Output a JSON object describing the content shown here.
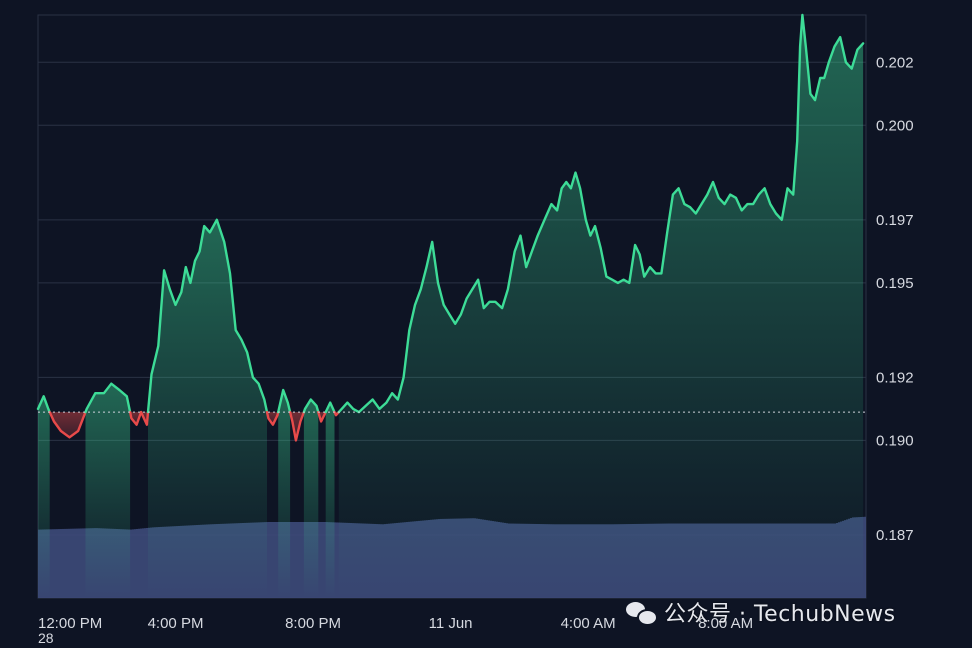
{
  "chart_data": {
    "type": "line",
    "baseline": 0.1909,
    "ylim": [
      0.185,
      0.2035
    ],
    "y_ticks": [
      {
        "value": 0.202,
        "label": "0.202"
      },
      {
        "value": 0.2,
        "label": "0.200"
      },
      {
        "value": 0.197,
        "label": "0.197"
      },
      {
        "value": 0.195,
        "label": "0.195"
      },
      {
        "value": 0.192,
        "label": "0.192"
      },
      {
        "value": 0.19,
        "label": "0.190"
      },
      {
        "value": 0.187,
        "label": "0.187"
      }
    ],
    "x_ticks": [
      {
        "value": 0,
        "label": "12:00 PM"
      },
      {
        "value": 240,
        "label": "4:00 PM"
      },
      {
        "value": 480,
        "label": "8:00 PM"
      },
      {
        "value": 720,
        "label": "11 Jun"
      },
      {
        "value": 960,
        "label": "4:00 AM"
      },
      {
        "value": 1200,
        "label": "8:00 AM"
      }
    ],
    "x_range_minutes": [
      0,
      1445
    ],
    "colors": {
      "up": "#3ddc97",
      "down": "#e84a4a",
      "volume": "#3d4a7a",
      "grid": "#2a3245",
      "baseline": "#cfd3dc"
    },
    "series": [
      {
        "values": [
          [
            0,
            0.191
          ],
          [
            10,
            0.1914
          ],
          [
            18,
            0.191
          ],
          [
            28,
            0.1906
          ],
          [
            40,
            0.1903
          ],
          [
            55,
            0.1901
          ],
          [
            70,
            0.1903
          ],
          [
            85,
            0.191
          ],
          [
            100,
            0.1915
          ],
          [
            115,
            0.1915
          ],
          [
            128,
            0.1918
          ],
          [
            142,
            0.1916
          ],
          [
            155,
            0.1914
          ],
          [
            163,
            0.1907
          ],
          [
            172,
            0.1905
          ],
          [
            180,
            0.1909
          ],
          [
            190,
            0.1905
          ],
          [
            198,
            0.1921
          ],
          [
            210,
            0.193
          ],
          [
            220,
            0.1954
          ],
          [
            230,
            0.1948
          ],
          [
            240,
            0.1943
          ],
          [
            250,
            0.1947
          ],
          [
            258,
            0.1955
          ],
          [
            266,
            0.195
          ],
          [
            274,
            0.1957
          ],
          [
            282,
            0.196
          ],
          [
            290,
            0.1968
          ],
          [
            300,
            0.1966
          ],
          [
            312,
            0.197
          ],
          [
            325,
            0.1963
          ],
          [
            335,
            0.1953
          ],
          [
            345,
            0.1935
          ],
          [
            355,
            0.1932
          ],
          [
            365,
            0.1928
          ],
          [
            375,
            0.192
          ],
          [
            385,
            0.1918
          ],
          [
            395,
            0.1913
          ],
          [
            402,
            0.1907
          ],
          [
            410,
            0.1905
          ],
          [
            418,
            0.1908
          ],
          [
            428,
            0.1916
          ],
          [
            436,
            0.1912
          ],
          [
            444,
            0.1906
          ],
          [
            450,
            0.19
          ],
          [
            458,
            0.1906
          ],
          [
            466,
            0.191
          ],
          [
            476,
            0.1913
          ],
          [
            486,
            0.1911
          ],
          [
            494,
            0.1906
          ],
          [
            502,
            0.1909
          ],
          [
            510,
            0.1912
          ],
          [
            520,
            0.1908
          ],
          [
            530,
            0.191
          ],
          [
            540,
            0.1912
          ],
          [
            550,
            0.191
          ],
          [
            560,
            0.1909
          ],
          [
            572,
            0.1911
          ],
          [
            584,
            0.1913
          ],
          [
            596,
            0.191
          ],
          [
            608,
            0.1912
          ],
          [
            618,
            0.1915
          ],
          [
            628,
            0.1913
          ],
          [
            638,
            0.192
          ],
          [
            648,
            0.1935
          ],
          [
            658,
            0.1943
          ],
          [
            668,
            0.1948
          ],
          [
            678,
            0.1955
          ],
          [
            688,
            0.1963
          ],
          [
            698,
            0.195
          ],
          [
            708,
            0.1943
          ],
          [
            718,
            0.194
          ],
          [
            728,
            0.1937
          ],
          [
            738,
            0.194
          ],
          [
            748,
            0.1945
          ],
          [
            758,
            0.1948
          ],
          [
            768,
            0.1951
          ],
          [
            778,
            0.1942
          ],
          [
            788,
            0.1944
          ],
          [
            798,
            0.1944
          ],
          [
            810,
            0.1942
          ],
          [
            820,
            0.1948
          ],
          [
            832,
            0.196
          ],
          [
            842,
            0.1965
          ],
          [
            852,
            0.1955
          ],
          [
            862,
            0.196
          ],
          [
            872,
            0.1965
          ],
          [
            884,
            0.197
          ],
          [
            896,
            0.1975
          ],
          [
            906,
            0.1973
          ],
          [
            914,
            0.198
          ],
          [
            922,
            0.1982
          ],
          [
            930,
            0.198
          ],
          [
            938,
            0.1985
          ],
          [
            946,
            0.198
          ],
          [
            956,
            0.197
          ],
          [
            964,
            0.1965
          ],
          [
            972,
            0.1968
          ],
          [
            982,
            0.1961
          ],
          [
            992,
            0.1952
          ],
          [
            1002,
            0.1951
          ],
          [
            1012,
            0.195
          ],
          [
            1022,
            0.1951
          ],
          [
            1032,
            0.195
          ],
          [
            1042,
            0.1962
          ],
          [
            1050,
            0.1959
          ],
          [
            1058,
            0.1952
          ],
          [
            1068,
            0.1955
          ],
          [
            1078,
            0.1953
          ],
          [
            1088,
            0.1953
          ],
          [
            1098,
            0.1966
          ],
          [
            1108,
            0.1978
          ],
          [
            1118,
            0.198
          ],
          [
            1128,
            0.1975
          ],
          [
            1138,
            0.1974
          ],
          [
            1148,
            0.1972
          ],
          [
            1158,
            0.1975
          ],
          [
            1168,
            0.1978
          ],
          [
            1178,
            0.1982
          ],
          [
            1188,
            0.1977
          ],
          [
            1198,
            0.1975
          ],
          [
            1208,
            0.1978
          ],
          [
            1218,
            0.1977
          ],
          [
            1228,
            0.1973
          ],
          [
            1238,
            0.1975
          ],
          [
            1248,
            0.1975
          ],
          [
            1258,
            0.1978
          ],
          [
            1268,
            0.198
          ],
          [
            1278,
            0.1975
          ],
          [
            1288,
            0.1972
          ],
          [
            1298,
            0.197
          ],
          [
            1308,
            0.198
          ],
          [
            1318,
            0.1978
          ],
          [
            1325,
            0.1995
          ],
          [
            1330,
            0.2025
          ],
          [
            1334,
            0.2035
          ],
          [
            1340,
            0.2025
          ],
          [
            1348,
            0.201
          ],
          [
            1356,
            0.2008
          ],
          [
            1365,
            0.2015
          ],
          [
            1372,
            0.2015
          ],
          [
            1380,
            0.202
          ],
          [
            1390,
            0.2025
          ],
          [
            1400,
            0.2028
          ],
          [
            1410,
            0.202
          ],
          [
            1420,
            0.2018
          ],
          [
            1430,
            0.2024
          ],
          [
            1440,
            0.2026
          ]
        ]
      }
    ],
    "volume": {
      "values": [
        [
          0,
          0.9
        ],
        [
          100,
          0.92
        ],
        [
          160,
          0.9
        ],
        [
          200,
          0.93
        ],
        [
          300,
          0.97
        ],
        [
          400,
          1.0
        ],
        [
          500,
          1.0
        ],
        [
          600,
          0.97
        ],
        [
          700,
          1.04
        ],
        [
          760,
          1.05
        ],
        [
          820,
          0.98
        ],
        [
          900,
          0.97
        ],
        [
          1000,
          0.97
        ],
        [
          1100,
          0.98
        ],
        [
          1200,
          0.98
        ],
        [
          1300,
          0.98
        ],
        [
          1390,
          0.98
        ],
        [
          1420,
          1.06
        ],
        [
          1445,
          1.07
        ]
      ]
    }
  },
  "footer": {
    "cutoff_label": "28"
  },
  "watermark": {
    "text": "公众号 · TechubNews"
  }
}
